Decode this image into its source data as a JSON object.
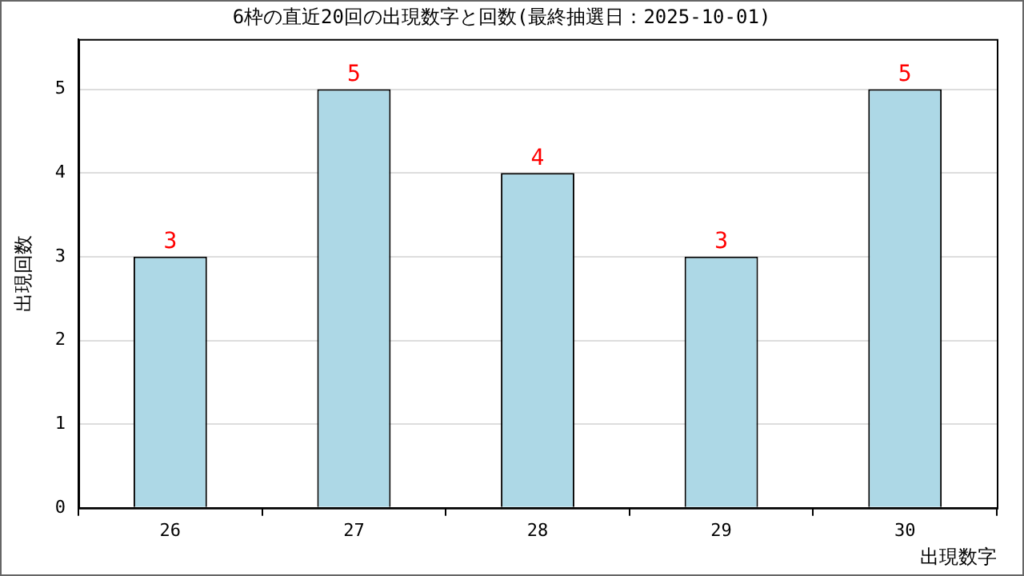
{
  "chart_data": {
    "type": "bar",
    "title": "6枠の直近20回の出現数字と回数(最終抽選日：2025-10-01)",
    "categories": [
      "26",
      "27",
      "28",
      "29",
      "30"
    ],
    "values": [
      3,
      5,
      4,
      3,
      5
    ],
    "color": "#add8e6",
    "xlabel": "出現数字",
    "ylabel": "出現回数",
    "ylim": [
      0,
      5.6
    ],
    "yticks": [
      0,
      1,
      2,
      3,
      4,
      5
    ],
    "grid": "y",
    "legend": false,
    "data_labels": true
  }
}
